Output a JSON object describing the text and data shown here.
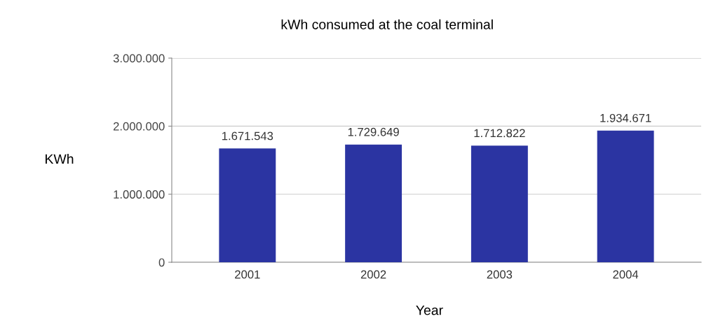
{
  "chart_data": {
    "type": "bar",
    "title": "kWh consumed at the coal terminal",
    "xlabel": "Year",
    "ylabel": "KWh",
    "categories": [
      "2001",
      "2002",
      "2003",
      "2004"
    ],
    "values": [
      1671543,
      1729649,
      1712822,
      1934671
    ],
    "value_labels": [
      "1.671.543",
      "1.729.649",
      "1.712.822",
      "1.934.671"
    ],
    "color": "#2b34a2",
    "ylim": [
      0,
      3000000
    ],
    "yticks": [
      0,
      {
        "value": 1000000,
        "label": "1.000.000"
      },
      {
        "value": 2000000,
        "label": "2.000.000"
      },
      {
        "value": 3000000,
        "label": "3.000.000"
      }
    ],
    "grid": "y",
    "legend": false
  }
}
